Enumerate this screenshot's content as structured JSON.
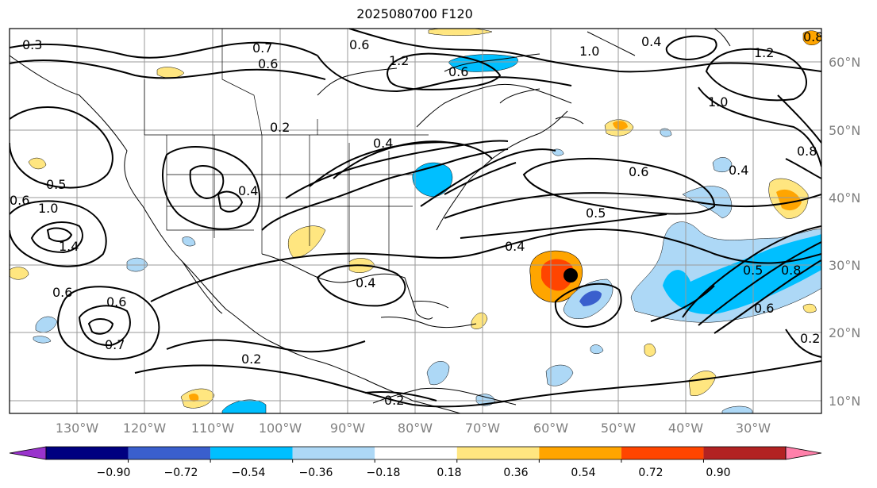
{
  "title": "2025080700 F120",
  "longitude_labels": [
    "130°W",
    "120°W",
    "110°W",
    "100°W",
    "90°W",
    "80°W",
    "70°W",
    "60°W",
    "50°W",
    "40°W",
    "30°W"
  ],
  "latitude_labels": [
    "60°N",
    "50°N",
    "40°N",
    "30°N",
    "20°N",
    "10°N"
  ],
  "colorbar": {
    "ticks": [
      "−0.90",
      "−0.72",
      "−0.54",
      "−0.36",
      "−0.18",
      "0.18",
      "0.36",
      "0.54",
      "0.72",
      "0.90"
    ],
    "colors": [
      "#9933cc",
      "#000080",
      "#3a5fcd",
      "#00bfff",
      "#add8f6",
      "#ffffff",
      "#ffe680",
      "#ffa500",
      "#ff4500",
      "#b22222",
      "#ff80aa"
    ]
  },
  "contour_labels": [
    "0.3",
    "0.7",
    "0.6",
    "0.6",
    "1.2",
    "1.0",
    "0.4",
    "1.2",
    "0.8",
    "0.5",
    "0.4",
    "0.4",
    "0.2",
    "0.6",
    "1.0",
    "1.4",
    "0.6",
    "0.6",
    "0.7",
    "0.4",
    "0.6",
    "0.5",
    "0.4",
    "0.2",
    "0.2",
    "0.6",
    "0.4",
    "0.5",
    "0.8",
    "0.6",
    "1.0",
    "0.8",
    "0.2"
  ],
  "marker": "storm-position"
}
